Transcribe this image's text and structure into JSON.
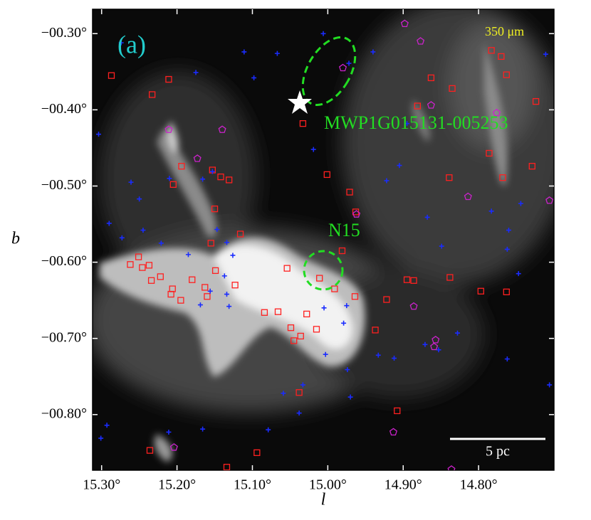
{
  "chart_data": {
    "type": "scatter",
    "xlabel": "l",
    "ylabel": "b",
    "xlim": [
      15.312,
      14.7
    ],
    "ylim": [
      -0.873,
      -0.268
    ],
    "xticks": [
      {
        "value": 15.3,
        "label": "15.30°"
      },
      {
        "value": 15.2,
        "label": "15.20°"
      },
      {
        "value": 15.1,
        "label": "15.10°"
      },
      {
        "value": 15.0,
        "label": "15.00°"
      },
      {
        "value": 14.9,
        "label": "14.90°"
      },
      {
        "value": 14.8,
        "label": "14.80°"
      }
    ],
    "yticks": [
      {
        "value": -0.3,
        "label": "−00.30°"
      },
      {
        "value": -0.4,
        "label": "−00.40°"
      },
      {
        "value": -0.5,
        "label": "−00.50°"
      },
      {
        "value": -0.6,
        "label": "−00.60°"
      },
      {
        "value": -0.7,
        "label": "−00.70°"
      },
      {
        "value": -0.8,
        "label": "−00.80°"
      }
    ],
    "annotations": {
      "panel": "(a)",
      "band": "350 μm",
      "source": "MWP1G015131-005253",
      "region": "N15",
      "scale": "5 pc"
    },
    "series": [
      {
        "marker": "square",
        "color": "#ff2020",
        "x": [
          15.287,
          15.211,
          15.233,
          15.194,
          15.205,
          15.153,
          15.142,
          15.131,
          15.15,
          15.116,
          15.155,
          15.251,
          15.262,
          15.246,
          15.237,
          15.234,
          15.222,
          15.206,
          15.208,
          15.195,
          15.18,
          15.163,
          15.16,
          15.149,
          15.123,
          15.084,
          15.066,
          15.049,
          15.045,
          15.036,
          15.028,
          15.015,
          15.001,
          14.971,
          14.963,
          15.054,
          15.011,
          14.991,
          14.981,
          14.964,
          14.937,
          14.895,
          14.886,
          14.838,
          14.863,
          14.835,
          14.783,
          14.77,
          14.763,
          14.724,
          14.786,
          14.729,
          14.768,
          14.839,
          14.797,
          14.763,
          14.881,
          15.033,
          14.908,
          15.038,
          15.094,
          15.134,
          15.236,
          14.922
        ],
        "y": [
          -0.355,
          -0.36,
          -0.38,
          -0.474,
          -0.498,
          -0.479,
          -0.488,
          -0.492,
          -0.53,
          -0.563,
          -0.575,
          -0.593,
          -0.603,
          -0.607,
          -0.604,
          -0.624,
          -0.619,
          -0.635,
          -0.642,
          -0.65,
          -0.623,
          -0.633,
          -0.645,
          -0.611,
          -0.63,
          -0.666,
          -0.665,
          -0.686,
          -0.703,
          -0.697,
          -0.668,
          -0.688,
          -0.485,
          -0.508,
          -0.534,
          -0.608,
          -0.621,
          -0.635,
          -0.585,
          -0.645,
          -0.689,
          -0.623,
          -0.624,
          -0.62,
          -0.358,
          -0.372,
          -0.322,
          -0.33,
          -0.354,
          -0.389,
          -0.457,
          -0.474,
          -0.489,
          -0.489,
          -0.638,
          -0.639,
          -0.395,
          -0.418,
          -0.795,
          -0.771,
          -0.85,
          -0.869,
          -0.847,
          -0.649
        ]
      },
      {
        "marker": "plus",
        "color": "#1a2cff",
        "x": [
          15.304,
          15.261,
          15.29,
          15.273,
          15.25,
          15.21,
          15.166,
          15.153,
          15.245,
          15.221,
          15.185,
          15.147,
          15.134,
          15.126,
          15.137,
          15.156,
          15.134,
          15.131,
          15.169,
          15.005,
          14.979,
          14.975,
          15.003,
          14.974,
          15.033,
          15.059,
          14.97,
          15.079,
          15.038,
          15.166,
          15.211,
          15.293,
          15.301,
          14.933,
          14.912,
          14.871,
          14.853,
          14.828,
          14.762,
          14.706,
          14.762,
          14.747,
          14.76,
          14.783,
          14.868,
          14.922,
          14.905,
          14.94,
          14.972,
          15.006,
          15.067,
          15.111,
          15.274,
          15.175,
          15.098,
          15.019,
          14.849,
          14.744,
          14.711,
          14.895
        ],
        "y": [
          -0.432,
          -0.495,
          -0.549,
          -0.568,
          -0.517,
          -0.49,
          -0.491,
          -0.481,
          -0.558,
          -0.575,
          -0.59,
          -0.557,
          -0.574,
          -0.591,
          -0.618,
          -0.638,
          -0.642,
          -0.658,
          -0.656,
          -0.66,
          -0.68,
          -0.657,
          -0.721,
          -0.741,
          -0.761,
          -0.772,
          -0.777,
          -0.82,
          -0.798,
          -0.819,
          -0.823,
          -0.814,
          -0.831,
          -0.722,
          -0.726,
          -0.708,
          -0.715,
          -0.693,
          -0.727,
          -0.761,
          -0.583,
          -0.615,
          -0.558,
          -0.533,
          -0.541,
          -0.493,
          -0.473,
          -0.324,
          -0.339,
          -0.3,
          -0.326,
          -0.324,
          -0.312,
          -0.351,
          -0.358,
          -0.452,
          -0.579,
          -0.523,
          -0.327,
          -0.418
        ]
      },
      {
        "marker": "pentagon",
        "color": "#cc22cc",
        "x": [
          14.898,
          14.877,
          14.98,
          14.863,
          15.211,
          15.14,
          15.173,
          14.776,
          14.962,
          14.814,
          14.706,
          14.886,
          14.857,
          14.859,
          14.913,
          15.204,
          14.836
        ],
        "y": [
          -0.287,
          -0.31,
          -0.345,
          -0.394,
          -0.426,
          -0.426,
          -0.464,
          -0.404,
          -0.537,
          -0.514,
          -0.519,
          -0.658,
          -0.702,
          -0.711,
          -0.823,
          -0.843,
          -0.872
        ]
      }
    ]
  }
}
